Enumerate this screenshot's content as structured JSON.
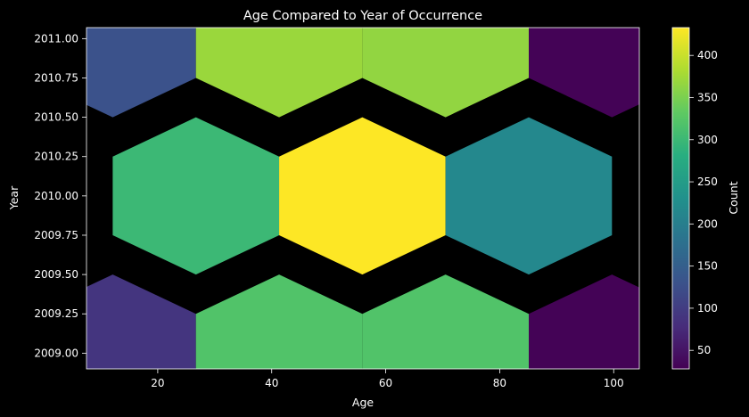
{
  "chart_data": {
    "type": "hexbin",
    "title": "Age Compared to Year of Occurrence",
    "xlabel": "Age",
    "ylabel": "Year",
    "xlim": [
      7.5,
      104.5
    ],
    "ylim": [
      2008.9,
      2011.07
    ],
    "xticks": [
      20,
      40,
      60,
      80,
      100
    ],
    "yticks": [
      "2009.00",
      "2009.25",
      "2009.50",
      "2009.75",
      "2010.00",
      "2010.25",
      "2010.50",
      "2010.75",
      "2011.00"
    ],
    "colormap": "viridis",
    "colorbar": {
      "label": "Count",
      "min": 28,
      "max": 433,
      "ticks": [
        50,
        100,
        150,
        200,
        250,
        300,
        350,
        400
      ]
    },
    "background": "#000000",
    "hex_size_x": 29.2,
    "hex_size_y": 0.5,
    "bins": [
      {
        "x": 12.1,
        "y": 2011.0,
        "count": 130
      },
      {
        "x": 41.3,
        "y": 2011.0,
        "count": 370
      },
      {
        "x": 70.5,
        "y": 2011.0,
        "count": 365
      },
      {
        "x": 99.7,
        "y": 2011.0,
        "count": 30
      },
      {
        "x": 26.7,
        "y": 2010.0,
        "count": 300
      },
      {
        "x": 55.9,
        "y": 2010.0,
        "count": 433
      },
      {
        "x": 85.1,
        "y": 2010.0,
        "count": 215
      },
      {
        "x": 12.1,
        "y": 2009.0,
        "count": 90
      },
      {
        "x": 41.3,
        "y": 2009.0,
        "count": 320
      },
      {
        "x": 70.5,
        "y": 2009.0,
        "count": 320
      },
      {
        "x": 99.7,
        "y": 2009.0,
        "count": 30
      }
    ]
  }
}
